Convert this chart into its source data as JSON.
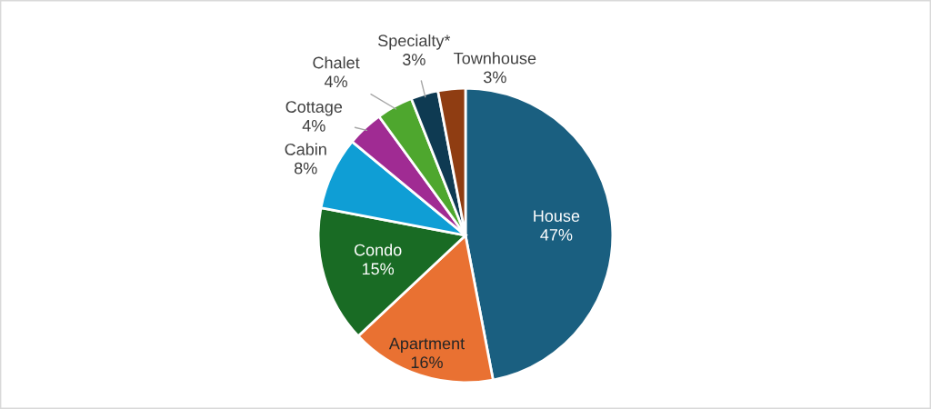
{
  "chart_data": {
    "type": "pie",
    "categories": [
      "House",
      "Apartment",
      "Condo",
      "Cabin",
      "Cottage",
      "Chalet",
      "Specialty*",
      "Townhouse"
    ],
    "values": [
      47,
      16,
      15,
      8,
      4,
      4,
      3,
      3
    ],
    "colors": [
      "#1a5f80",
      "#e97132",
      "#196b24",
      "#0f9ed5",
      "#a02b93",
      "#4ea72e",
      "#0e3a52",
      "#8f3d12"
    ],
    "value_labels": [
      "47%",
      "16%",
      "15%",
      "8%",
      "4%",
      "4%",
      "3%",
      "3%"
    ],
    "legend": false
  }
}
